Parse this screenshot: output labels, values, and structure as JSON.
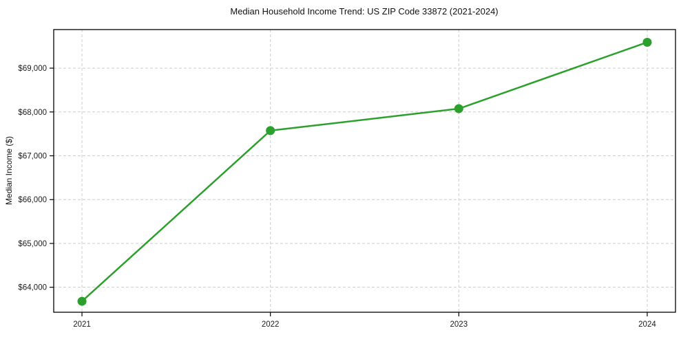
{
  "chart_data": {
    "type": "line",
    "title": "Median Household Income Trend: US ZIP Code 33872 (2021-2024)",
    "xlabel": "",
    "ylabel": "Median Income ($)",
    "categories": [
      "2021",
      "2022",
      "2023",
      "2024"
    ],
    "values": [
      63680,
      67575,
      68075,
      69590
    ],
    "ytick_values": [
      64000,
      65000,
      66000,
      67000,
      68000,
      69000
    ],
    "ytick_labels": [
      "$64,000",
      "$65,000",
      "$66,000",
      "$67,000",
      "$68,000",
      "$69,000"
    ],
    "ylim": [
      63430,
      69880
    ],
    "xlim_index": [
      -0.15,
      3.15
    ],
    "grid": true,
    "legend": false,
    "line_color": "#2ca02c",
    "marker": "circle",
    "grid_color": "#cccccc",
    "axis_color": "#000000",
    "text_color": "#1a1a1a",
    "background_color": "#ffffff"
  }
}
